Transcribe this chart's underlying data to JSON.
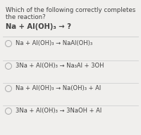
{
  "background_color": "#f0efed",
  "question_line1": "Which of the following correctly completes",
  "question_line2": "the reaction?",
  "equation": "Na + Al(OH)₃ → ?",
  "options": [
    "Na + Al(OH)₃ → NaAl(OH)₃",
    "3Na + Al(OH)₃ → Na₃Al + 3OH",
    "Na + Al(OH)₃ → Na(OH)₃ + Al",
    "3Na + Al(OH)₃ → 3NaOH + Al"
  ],
  "text_color": "#444444",
  "circle_color": "#aaaaaa",
  "line_color": "#cccccc",
  "question_fontsize": 6.2,
  "equation_fontsize": 7.2,
  "option_fontsize": 6.0,
  "fig_width": 2.0,
  "fig_height": 1.92,
  "dpi": 100
}
